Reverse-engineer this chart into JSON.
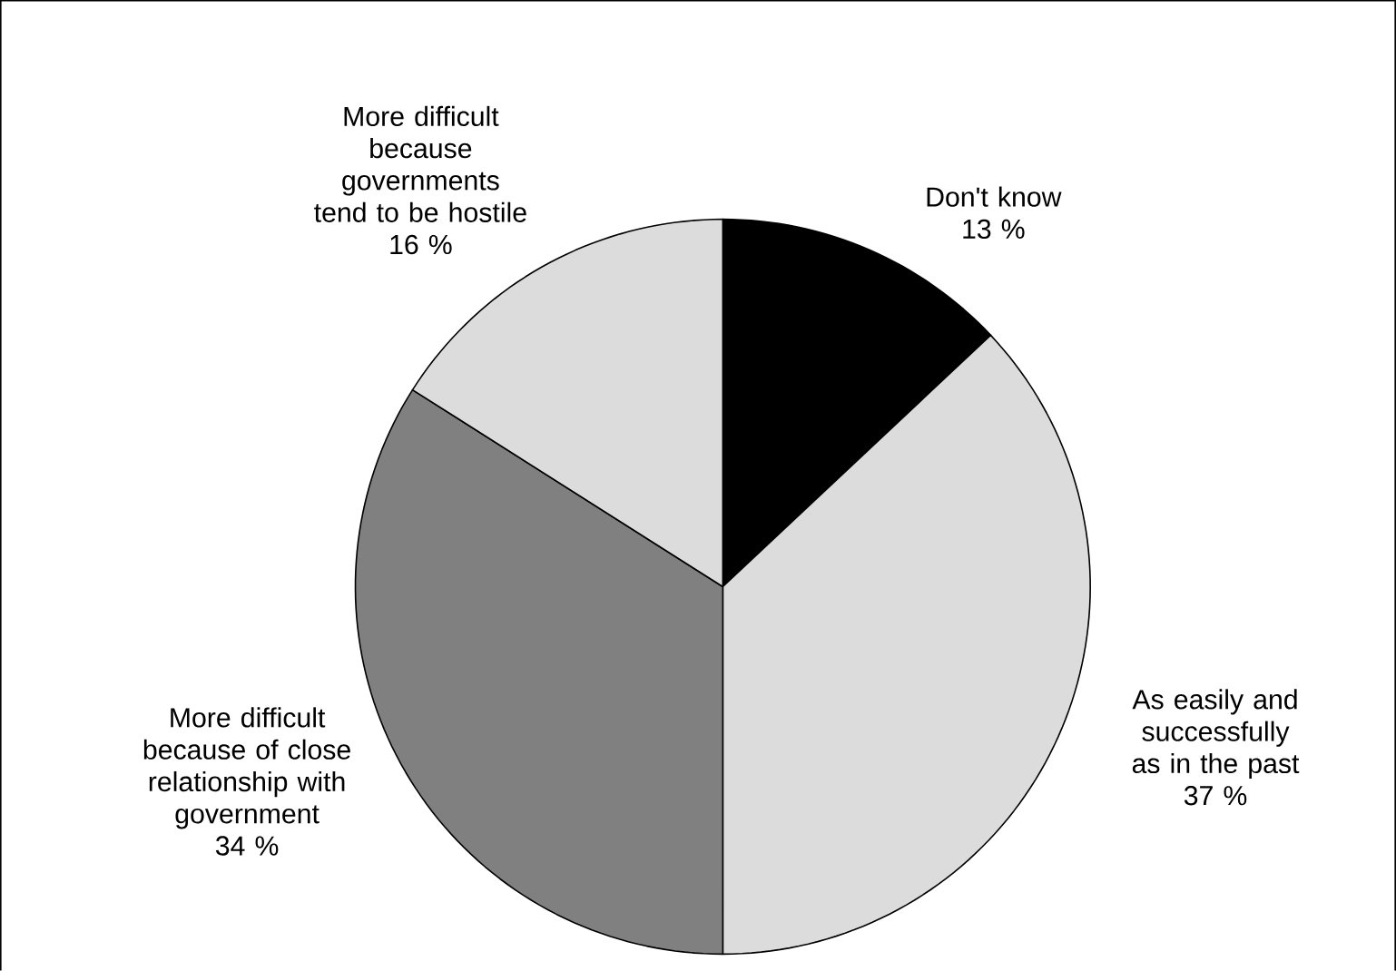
{
  "chart_data": {
    "type": "pie",
    "categories": [
      "Don't know",
      "As easily and successfully as in the past",
      "More difficult because of close relationship with government",
      "More difficult because governments tend to be hostile"
    ],
    "values": [
      13,
      37,
      34,
      16
    ],
    "colors": [
      "#000000",
      "#dcdcdc",
      "#808080",
      "#dcdcdc"
    ],
    "value_labels": [
      "13 %",
      "37 %",
      "34 %",
      "16 %"
    ]
  }
}
